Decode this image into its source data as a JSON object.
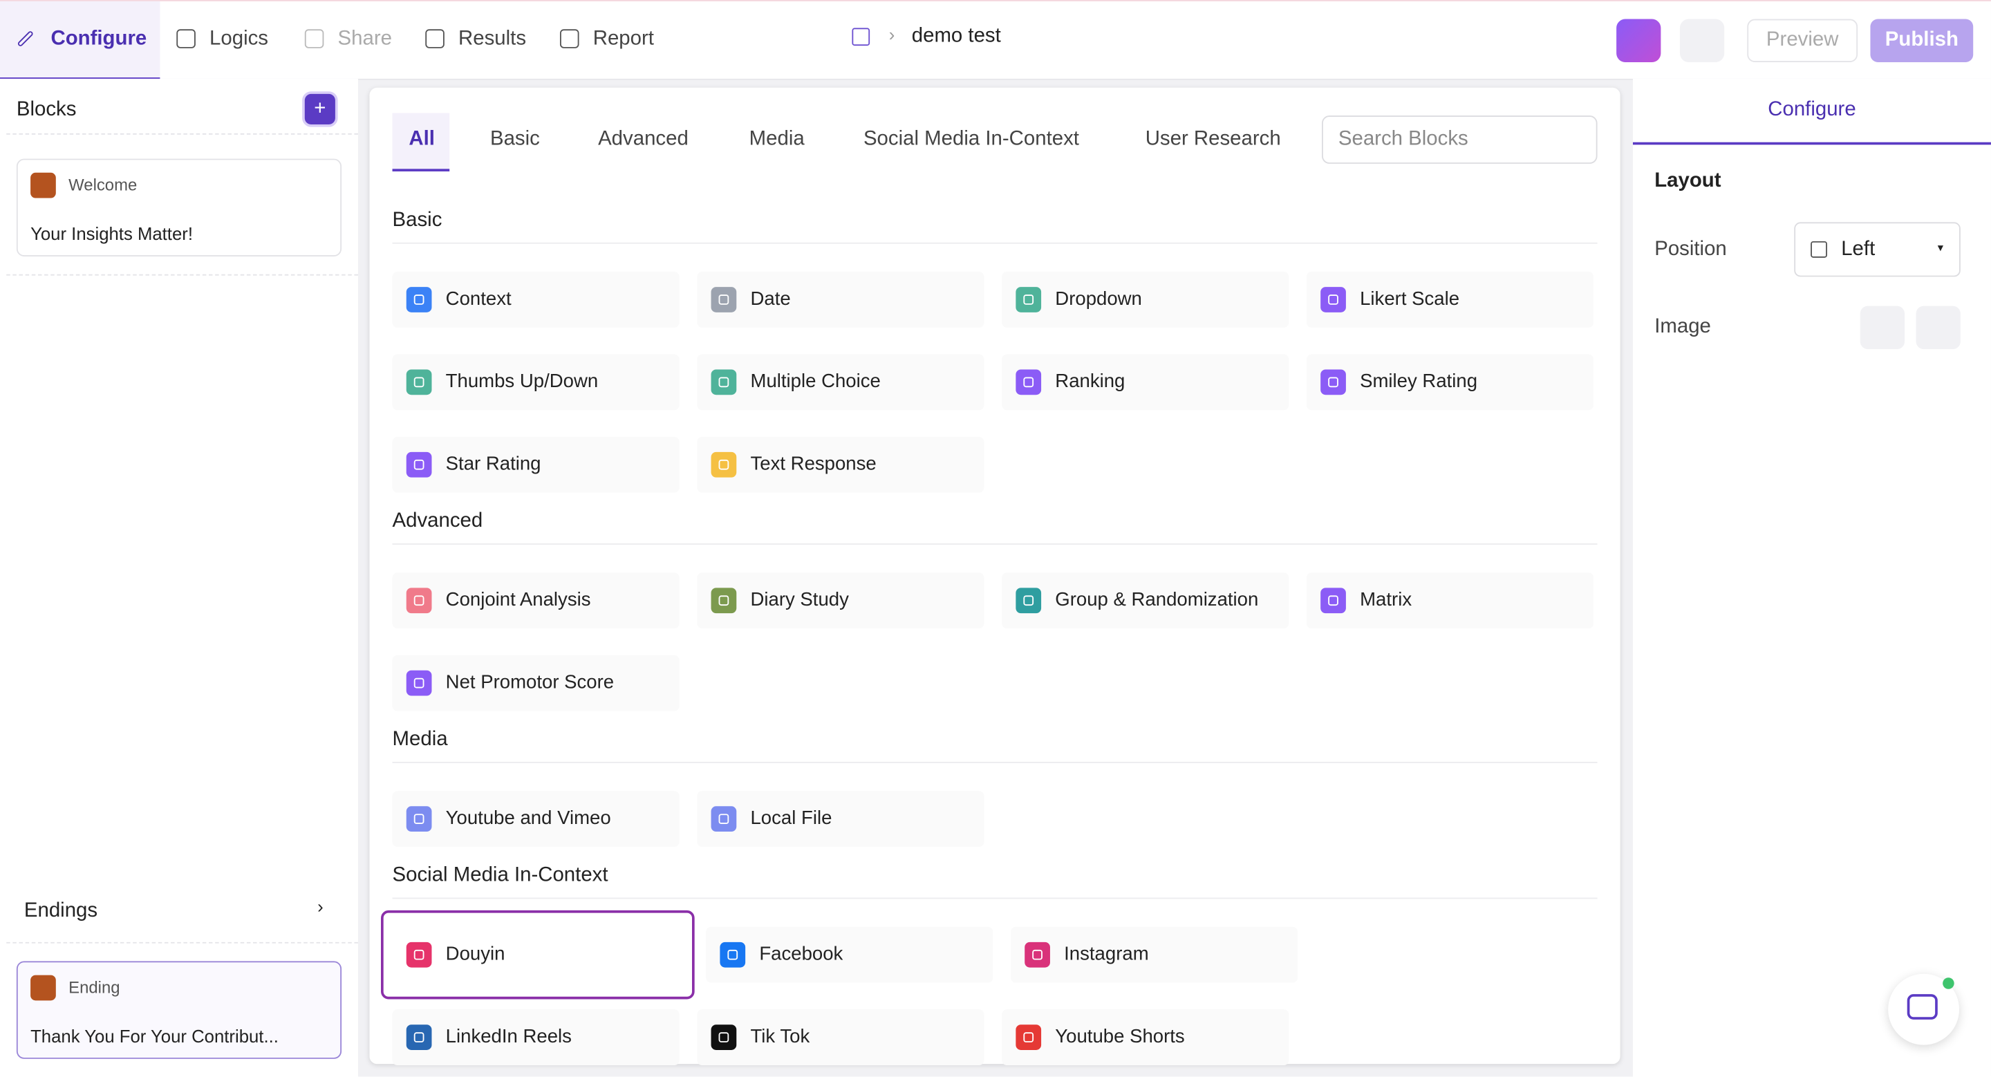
{
  "nav": {
    "tabs": [
      "Configure",
      "Logics",
      "Share",
      "Results",
      "Report"
    ],
    "breadcrumb": "demo test",
    "buttons": [
      "Preview",
      "Publish"
    ]
  },
  "sidebar": {
    "title": "Blocks",
    "welcome": {
      "tag": "Welcome",
      "text": "Your Insights Matter!"
    },
    "endings_title": "Endings",
    "ending": {
      "tag": "Ending",
      "text": "Thank You For Your Contribut..."
    }
  },
  "main": {
    "tabs": [
      "All",
      "Basic",
      "Advanced",
      "Media",
      "Social Media In-Context",
      "User Research"
    ],
    "search_placeholder": "Search Blocks",
    "sections": [
      {
        "title": "Basic",
        "items": [
          {
            "label": "Context",
            "color": "#3b82f6"
          },
          {
            "label": "Date",
            "color": "#9ca3af"
          },
          {
            "label": "Dropdown",
            "color": "#4fb39a"
          },
          {
            "label": "Likert Scale",
            "color": "#8b5cf6"
          },
          {
            "label": "Thumbs Up/Down",
            "color": "#4fb39a"
          },
          {
            "label": "Multiple Choice",
            "color": "#4fb39a"
          },
          {
            "label": "Ranking",
            "color": "#8b5cf6"
          },
          {
            "label": "Smiley Rating",
            "color": "#8b5cf6"
          },
          {
            "label": "Star Rating",
            "color": "#8b5cf6"
          },
          {
            "label": "Text Response",
            "color": "#f5c043"
          }
        ]
      },
      {
        "title": "Advanced",
        "items": [
          {
            "label": "Conjoint Analysis",
            "color": "#f07a8a"
          },
          {
            "label": "Diary Study",
            "color": "#7c9a4e"
          },
          {
            "label": "Group & Randomization",
            "color": "#2f9ea0"
          },
          {
            "label": "Matrix",
            "color": "#8b5cf6"
          },
          {
            "label": "Net Promotor Score",
            "color": "#8b5cf6"
          }
        ]
      },
      {
        "title": "Media",
        "items": [
          {
            "label": "Youtube and Vimeo",
            "color": "#7c8cf0"
          },
          {
            "label": "Local File",
            "color": "#7c8cf0"
          }
        ]
      },
      {
        "title": "Social Media In-Context",
        "items": [
          {
            "label": "Douyin",
            "color": "#e6336a"
          },
          {
            "label": "Facebook",
            "color": "#1877f2"
          },
          {
            "label": "Instagram",
            "color": "#d9327a"
          },
          {
            "label": "LinkedIn Reels",
            "color": "#2867b2"
          },
          {
            "label": "Tik Tok",
            "color": "#111111"
          },
          {
            "label": "Youtube Shorts",
            "color": "#e53935"
          }
        ]
      }
    ]
  },
  "panel": {
    "tab": "Configure",
    "layout": "Layout",
    "position_label": "Position",
    "position_value": "Left",
    "image_label": "Image"
  }
}
